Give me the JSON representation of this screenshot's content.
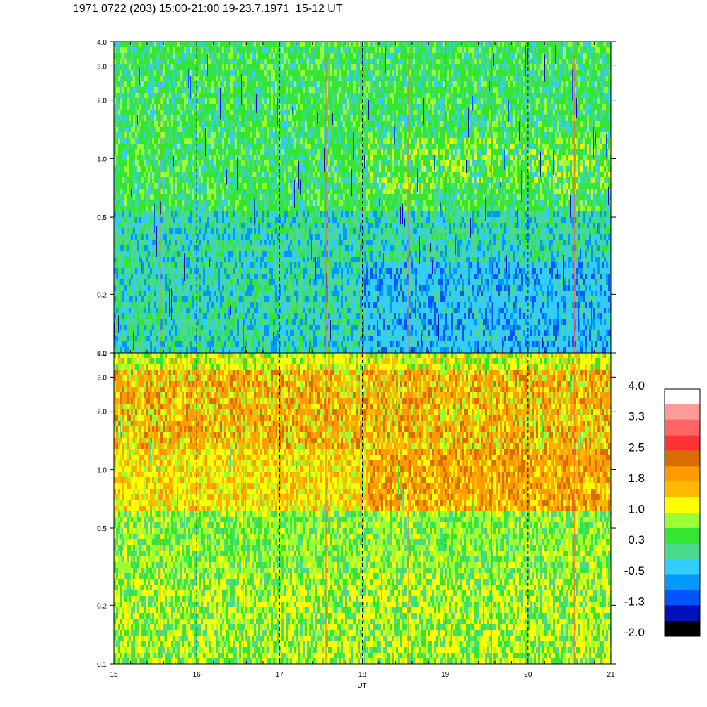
{
  "title": "1971 0722 (203) 15:00-21:00 19-23.7.1971  15-12 UT",
  "chart_data": {
    "type": "heatmap",
    "xlabel": "UT",
    "x_ticks": [
      "15",
      "16",
      "17",
      "18",
      "19",
      "20",
      "21"
    ],
    "xlim": [
      15,
      21
    ],
    "dashed_hour_lines": [
      16,
      17,
      18,
      19,
      20
    ],
    "panels": [
      {
        "name": "upper",
        "y_scale": "log",
        "ylim": [
          0.1,
          4.0
        ],
        "y_ticks": [
          "0.1",
          "0.2",
          "0.5",
          "1.0",
          "2.0",
          "3.0",
          "4.0"
        ]
      },
      {
        "name": "lower",
        "y_scale": "log",
        "ylim": [
          0.1,
          4.0
        ],
        "y_ticks": [
          "0.1",
          "0.2",
          "0.5",
          "1.0",
          "2.0",
          "3.0",
          "4.0"
        ]
      }
    ],
    "colorbar": {
      "labels": [
        "4.0",
        "3.3",
        "2.5",
        "1.8",
        "1.0",
        "0.3",
        "-0.5",
        "-1.3",
        "-2.0"
      ],
      "colors": [
        "#ffffff",
        "#ff9a9a",
        "#ff6565",
        "#ff3333",
        "#d86e00",
        "#ff9a00",
        "#ffba00",
        "#ffff00",
        "#9aff33",
        "#33e633",
        "#4dd98d",
        "#33ccff",
        "#009aff",
        "#0055ff",
        "#0011bb",
        "#000000"
      ]
    }
  }
}
